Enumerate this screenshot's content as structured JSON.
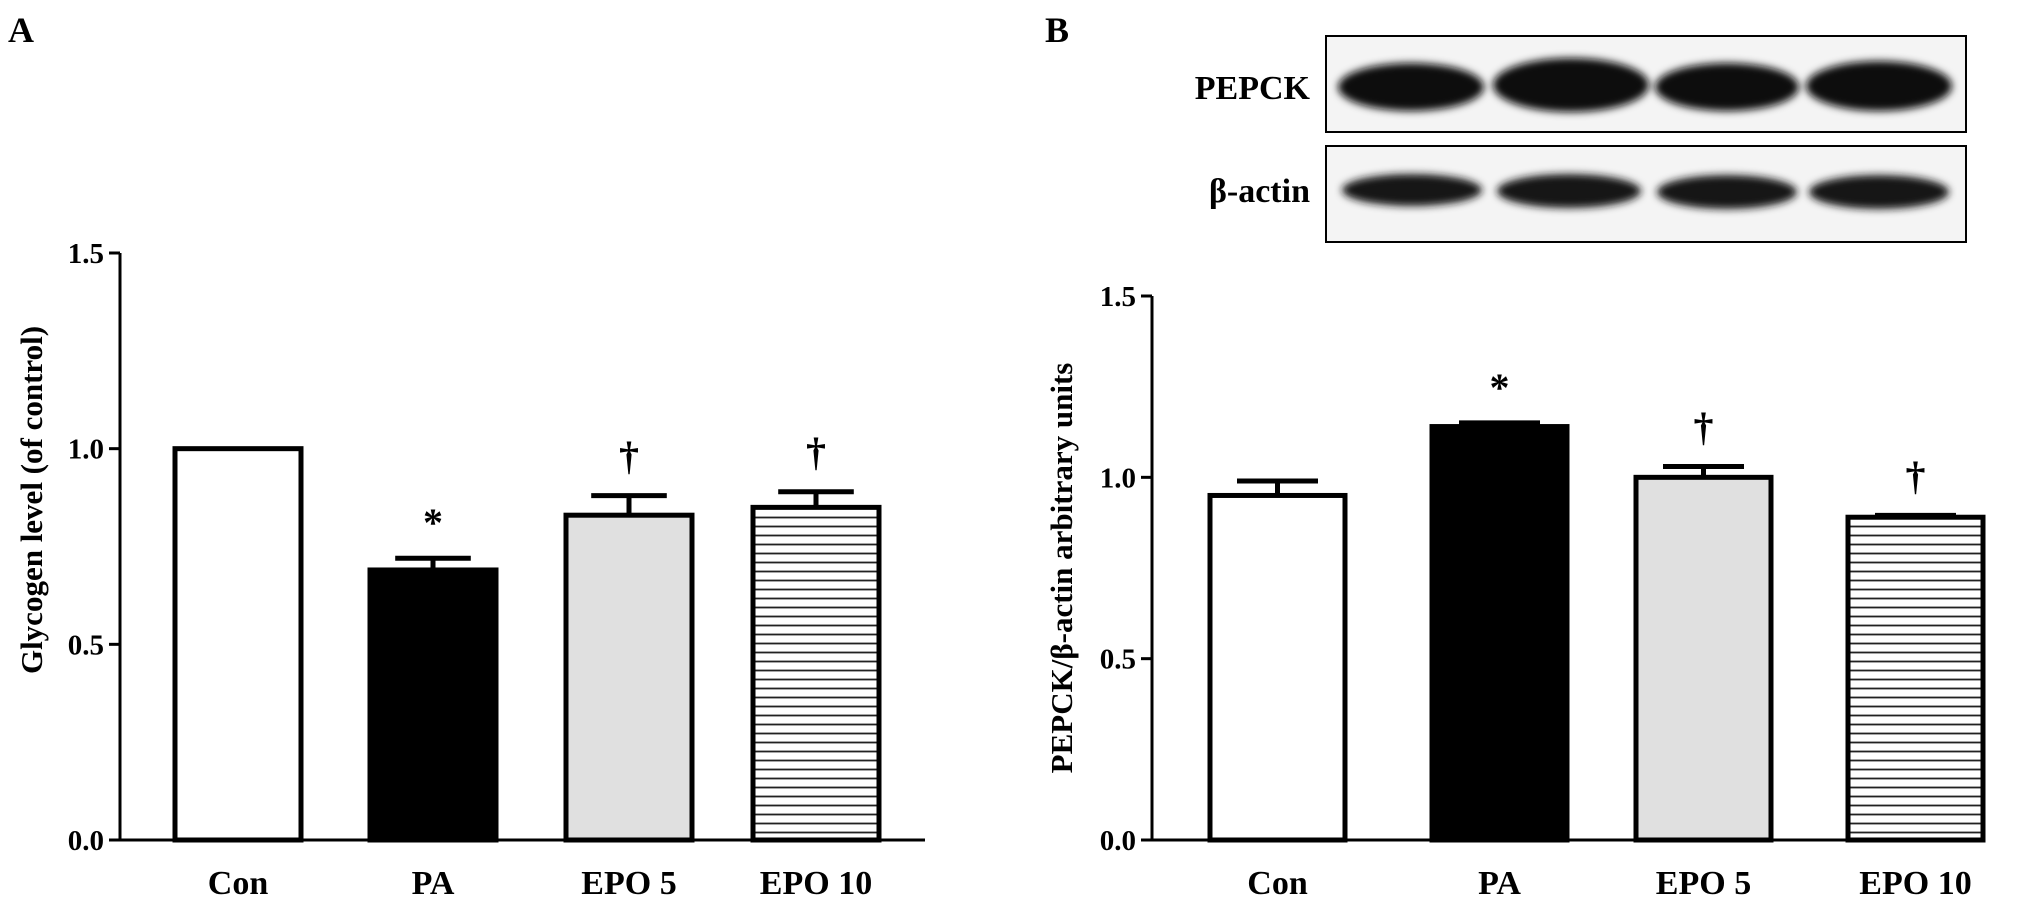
{
  "chart_data": [
    {
      "type": "bar",
      "panel": "A",
      "categories": [
        "Con",
        "PA",
        "EPO 5",
        "EPO 10"
      ],
      "values": [
        1.0,
        0.69,
        0.83,
        0.85
      ],
      "errors": [
        0.0,
        0.03,
        0.05,
        0.04
      ],
      "annotations": [
        "",
        "*",
        "†",
        "†"
      ],
      "fills": [
        "white",
        "black",
        "lightgray",
        "hlines"
      ],
      "ylabel": "Glycogen level (of control)",
      "xlabel": "",
      "ylim": [
        0,
        1.5
      ],
      "yticks": [
        "0.0",
        "0.5",
        "1.0",
        "1.5"
      ],
      "grid": false
    },
    {
      "type": "bar",
      "panel": "B",
      "categories": [
        "Con",
        "PA",
        "EPO 5",
        "EPO 10"
      ],
      "values": [
        0.95,
        1.14,
        1.0,
        0.89
      ],
      "errors": [
        0.04,
        0.01,
        0.03,
        0.005
      ],
      "annotations": [
        "",
        "*",
        "†",
        "†"
      ],
      "fills": [
        "white",
        "black",
        "lightgray",
        "hlines"
      ],
      "ylabel": "PEPCK/β-actin arbitrary units",
      "xlabel": "",
      "ylim": [
        0,
        1.5
      ],
      "yticks": [
        "0.0",
        "0.5",
        "1.0",
        "1.5"
      ],
      "grid": false,
      "blot_labels": [
        "PEPCK",
        "β-actin"
      ]
    }
  ],
  "colors": {
    "white": "#ffffff",
    "black": "#000000",
    "lightgray": "#e0e0e0"
  }
}
